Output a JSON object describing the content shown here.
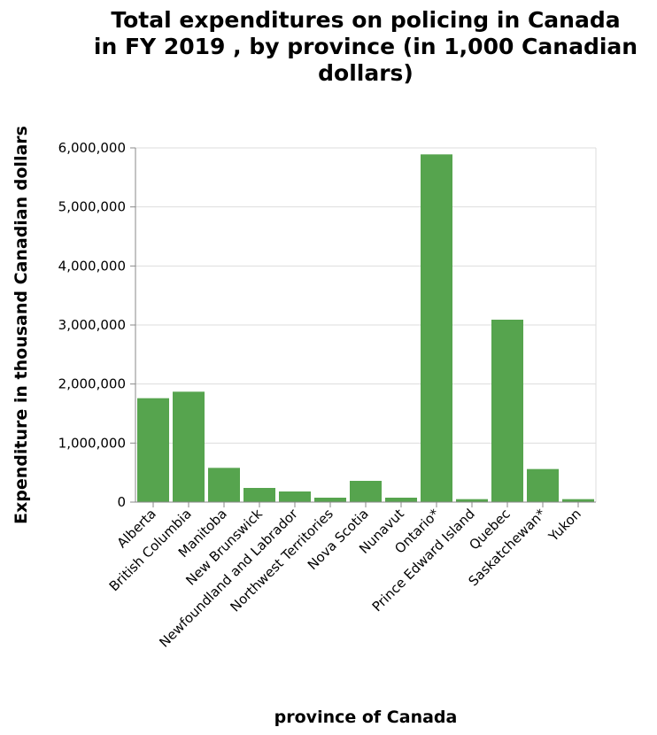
{
  "chart_data": {
    "type": "bar",
    "title_lines": [
      "Total expenditures on policing in Canada",
      "in FY 2019 , by province (in 1,000 Canadian",
      "dollars)"
    ],
    "xlabel": "province of Canada",
    "ylabel": "Expenditure in thousand Canadian dollars",
    "ylim": [
      0,
      6000000
    ],
    "yticks": [
      0,
      1000000,
      2000000,
      3000000,
      4000000,
      5000000,
      6000000
    ],
    "ytick_labels": [
      "0",
      "1,000,000",
      "2,000,000",
      "3,000,000",
      "4,000,000",
      "5,000,000",
      "6,000,000"
    ],
    "grid": true,
    "bar_color": "#56a44e",
    "categories": [
      "Alberta",
      "British Columbia",
      "Manitoba",
      "New Brunswick",
      "Newfoundland and Labrador",
      "Northwest Territories",
      "Nova Scotia",
      "Nunavut",
      "Ontario*",
      "Prince Edward Island",
      "Quebec",
      "Saskatchewan*",
      "Yukon"
    ],
    "values": [
      1760000,
      1870000,
      580000,
      240000,
      180000,
      75000,
      360000,
      75000,
      5890000,
      50000,
      3090000,
      560000,
      50000
    ]
  }
}
